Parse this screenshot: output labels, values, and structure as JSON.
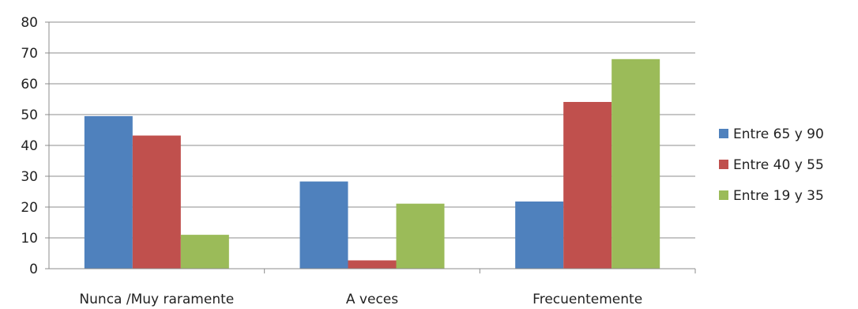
{
  "chart_data": {
    "type": "bar",
    "title": "",
    "xlabel": "",
    "ylabel": "",
    "ylim": [
      0,
      80
    ],
    "y_ticks": [
      "0",
      "10",
      "20",
      "30",
      "40",
      "50",
      "60",
      "70",
      "80"
    ],
    "grid": true,
    "legend_position": "right",
    "categories": [
      "Nunca /Muy raramente",
      "A veces",
      "Frecuentemente"
    ],
    "series": [
      {
        "name": "Entre 65 y 90",
        "color": "#4F81BD",
        "values": [
          49.5,
          28.3,
          21.8
        ]
      },
      {
        "name": "Entre 40 y 55",
        "color": "#C0504D",
        "values": [
          43.2,
          2.7,
          54.1
        ]
      },
      {
        "name": "Entre 19 y 35",
        "color": "#9BBB59",
        "values": [
          11.0,
          21.1,
          68.0
        ]
      }
    ]
  }
}
